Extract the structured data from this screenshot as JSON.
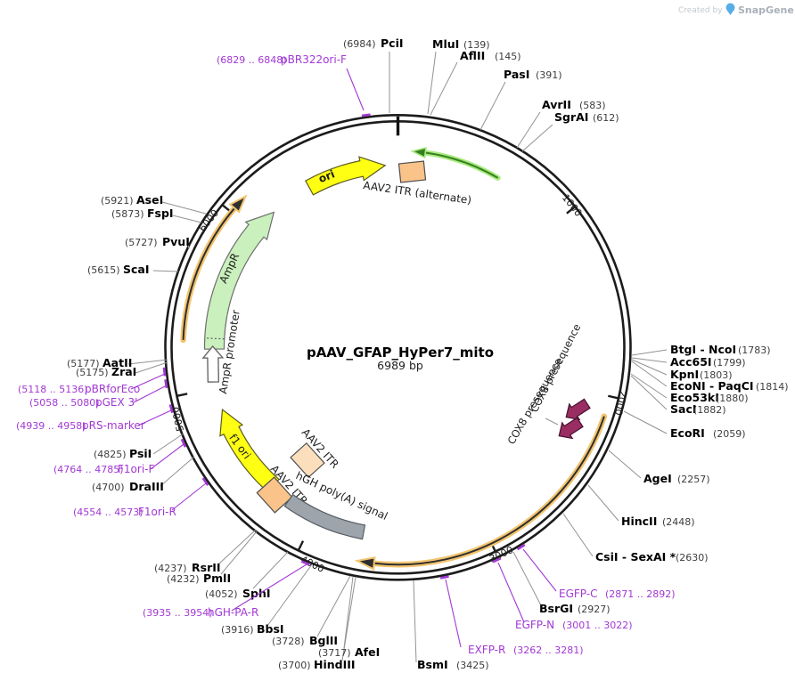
{
  "credit": {
    "created_by": "Created by",
    "brand": "SnapGene"
  },
  "plasmid": {
    "name": "pAAV_GFAP_HyPer7_mito",
    "length": "6989 bp"
  },
  "scale": {
    "t1": "1000",
    "t2": "2000",
    "t3": "3000",
    "t4": "4000",
    "t5": "5000",
    "t6": "6000"
  },
  "features": {
    "ori": "ori",
    "aav2_itr_alt": "AAV2 ITR (alternate)",
    "ampr": "AmpR",
    "ampr_promoter": "AmpR promoter",
    "f1_ori": "f1 ori",
    "aav2_itr": "AAV2 ITR",
    "hgh_polya": "hGH poly(A) signal",
    "cox8": "COX8 presequence"
  },
  "sites": [
    {
      "name": "PciI",
      "pos": "(6984)"
    },
    {
      "name": "MluI",
      "pos": "(139)"
    },
    {
      "name": "AflII",
      "pos": "(145)"
    },
    {
      "name": "PasI",
      "pos": "(391)"
    },
    {
      "name": "AvrII",
      "pos": "(583)"
    },
    {
      "name": "SgrAI",
      "pos": "(612)"
    },
    {
      "name": "BtgI - NcoI",
      "pos": "(1783)"
    },
    {
      "name": "Acc65I",
      "pos": "(1799)"
    },
    {
      "name": "KpnI",
      "pos": "(1803)"
    },
    {
      "name": "EcoNI - PaqCI",
      "pos": "(1814)"
    },
    {
      "name": "Eco53kI",
      "pos": "(1880)"
    },
    {
      "name": "SacI",
      "pos": "(1882)"
    },
    {
      "name": "EcoRI",
      "pos": "(2059)"
    },
    {
      "name": "AgeI",
      "pos": "(2257)"
    },
    {
      "name": "HincII",
      "pos": "(2448)"
    },
    {
      "name": "CsiI - SexAI *",
      "pos": "(2630)"
    },
    {
      "name": "BsrGI",
      "pos": "(2927)"
    },
    {
      "name": "BsmI",
      "pos": "(3425)"
    },
    {
      "name": "HindIII",
      "pos": "(3700)"
    },
    {
      "name": "AfeI",
      "pos": "(3717)"
    },
    {
      "name": "BglII",
      "pos": "(3728)"
    },
    {
      "name": "BbsI",
      "pos": "(3916)"
    },
    {
      "name": "SphI",
      "pos": "(4052)"
    },
    {
      "name": "PmlI",
      "pos": "(4232)"
    },
    {
      "name": "RsrII",
      "pos": "(4237)"
    },
    {
      "name": "DraIII",
      "pos": "(4700)"
    },
    {
      "name": "PsiI",
      "pos": "(4825)"
    },
    {
      "name": "ZraI",
      "pos": "(5175)"
    },
    {
      "name": "AatII",
      "pos": "(5177)"
    },
    {
      "name": "ScaI",
      "pos": "(5615)"
    },
    {
      "name": "PvuI",
      "pos": "(5727)"
    },
    {
      "name": "FspI",
      "pos": "(5873)"
    },
    {
      "name": "AseI",
      "pos": "(5921)"
    }
  ],
  "primers": [
    {
      "name": "pBR322ori-F",
      "range": "(6829 .. 6848)"
    },
    {
      "name": "EGFP-C",
      "range": "(2871 .. 2892)"
    },
    {
      "name": "EGFP-N",
      "range": "(3001 .. 3022)"
    },
    {
      "name": "EXFP-R",
      "range": "(3262 .. 3281)"
    },
    {
      "name": "hGH-PA-R",
      "range": "(3935 .. 3954)"
    },
    {
      "name": "F1ori-R",
      "range": "(4554 .. 4573)"
    },
    {
      "name": "F1ori-F",
      "range": "(4764 .. 4785)"
    },
    {
      "name": "pRS-marker",
      "range": "(4939 .. 4958)"
    },
    {
      "name": "pGEX 3'",
      "range": "(5058 .. 5080)"
    },
    {
      "name": "pBRforEco",
      "range": "(5118 .. 5136)"
    }
  ]
}
